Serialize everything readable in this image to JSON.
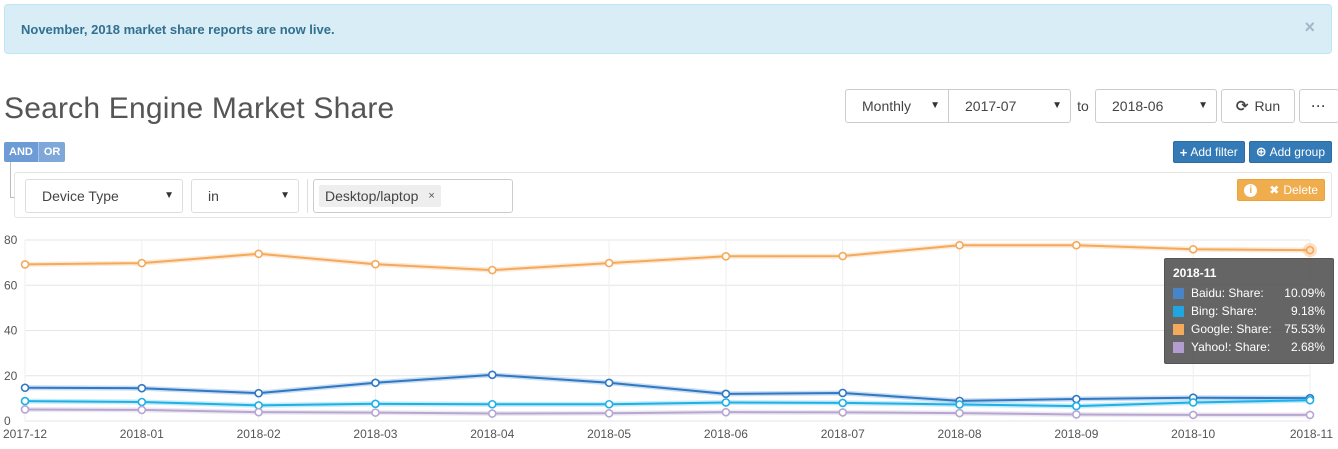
{
  "alert": {
    "message": "November, 2018 market share reports are now live.",
    "close": "×"
  },
  "page_title": "Search Engine Market Share",
  "controls": {
    "interval": "Monthly",
    "from": "2017-07",
    "to_label": "to",
    "to": "2018-06",
    "run_label": "Run",
    "more_label": "···"
  },
  "filter": {
    "and_label": "AND",
    "or_label": "OR",
    "add_filter_label": "Add filter",
    "add_group_label": "Add group",
    "field": "Device Type",
    "operator": "in",
    "value_tag": "Desktop/laptop",
    "tag_remove": "×",
    "delete_label": "Delete"
  },
  "colors": {
    "baidu": "#2f78c4",
    "bing": "#1fb0e6",
    "google": "#f5a95a",
    "yahoo": "#b8a6d0"
  },
  "tooltip": {
    "title": "2018-11",
    "rows": [
      {
        "name": "Baidu: Share:",
        "value": "10.09%",
        "color": "#4a84c8"
      },
      {
        "name": "Bing: Share:",
        "value": "9.18%",
        "color": "#1fa6e0"
      },
      {
        "name": "Google: Share:",
        "value": "75.53%",
        "color": "#f5a95a"
      },
      {
        "name": "Yahoo!: Share:",
        "value": "2.68%",
        "color": "#b39dd0"
      }
    ]
  },
  "chart_data": {
    "type": "line",
    "x": [
      "2017-12",
      "2018-01",
      "2018-02",
      "2018-03",
      "2018-04",
      "2018-05",
      "2018-06",
      "2018-07",
      "2018-08",
      "2018-09",
      "2018-10",
      "2018-11"
    ],
    "ylim": [
      0,
      80
    ],
    "yticks": [
      "0",
      "20",
      "40",
      "60",
      "80"
    ],
    "grid": true,
    "series": [
      {
        "name": "Google",
        "color": "#f5a95a",
        "values": [
          69.2,
          69.8,
          73.9,
          69.3,
          66.7,
          69.8,
          72.8,
          72.9,
          77.7,
          77.7,
          75.9,
          75.53
        ]
      },
      {
        "name": "Baidu",
        "color": "#2f78c4",
        "values": [
          14.7,
          14.5,
          12.3,
          16.9,
          20.4,
          16.9,
          12.0,
          12.4,
          8.9,
          9.7,
          10.3,
          10.09
        ]
      },
      {
        "name": "Bing",
        "color": "#1fb0e6",
        "values": [
          8.8,
          8.4,
          6.9,
          7.6,
          7.4,
          7.4,
          8.2,
          8.0,
          7.3,
          6.6,
          8.2,
          9.18
        ]
      },
      {
        "name": "Yahoo!",
        "color": "#b8a6d0",
        "values": [
          5.1,
          4.9,
          3.9,
          3.7,
          3.3,
          3.4,
          3.9,
          3.8,
          3.5,
          2.9,
          2.7,
          2.68
        ]
      }
    ]
  }
}
